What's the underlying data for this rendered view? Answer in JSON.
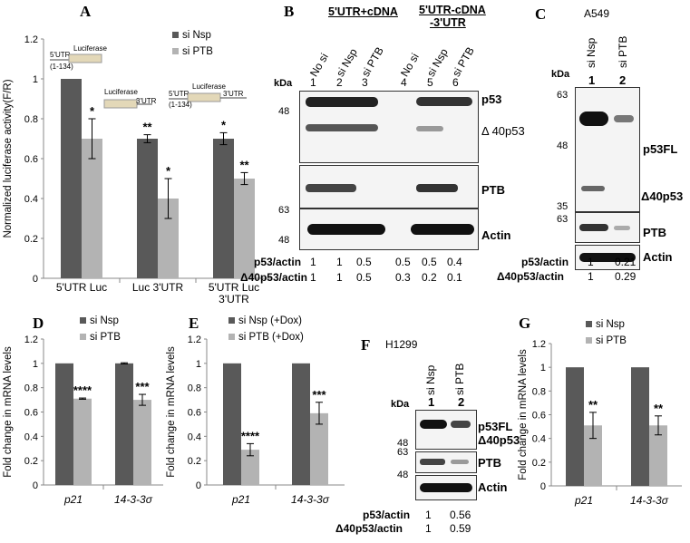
{
  "panels": {
    "A": "A",
    "B": "B",
    "C": "C",
    "D": "D",
    "E": "E",
    "F": "F",
    "G": "G"
  },
  "colors": {
    "nsp": "#595959",
    "ptb": "#b3b3b3",
    "construct": "#e3d8b8"
  },
  "chart_data": [
    {
      "panel": "A",
      "type": "bar",
      "ylabel": "Normalized luciferase activity(F/R)",
      "ylim": [
        0,
        1.2
      ],
      "yticks": [
        "0",
        "0.2",
        "0.4",
        "0.6",
        "0.8",
        "1",
        "1.2"
      ],
      "categories": [
        "5'UTR Luc",
        "Luc 3'UTR",
        "5'UTR Luc 3'UTR"
      ],
      "category_lines": [
        [
          "5'UTR Luc"
        ],
        [
          "Luc 3'UTR"
        ],
        [
          "5'UTR Luc",
          "3'UTR"
        ]
      ],
      "legend": [
        "si Nsp",
        "si PTB"
      ],
      "series": [
        {
          "name": "si Nsp",
          "values": [
            1.0,
            0.7,
            0.7
          ],
          "err": [
            0,
            0.02,
            0.03
          ],
          "sig": [
            "",
            "**",
            "*"
          ]
        },
        {
          "name": "si PTB",
          "values": [
            0.7,
            0.4,
            0.5
          ],
          "err": [
            0.1,
            0.1,
            0.03
          ],
          "sig": [
            "*",
            "*",
            "**"
          ]
        }
      ],
      "constructs": {
        "c1": [
          "5'UTR",
          "Luciferase",
          "(1-134)"
        ],
        "c2": [
          "Luciferase",
          "3'UTR"
        ],
        "c3": [
          "5'UTR",
          "Luciferase",
          "3'UTR",
          "(1-134)"
        ]
      }
    },
    {
      "panel": "D",
      "type": "bar",
      "ylabel": "Fold change in mRNA levels",
      "ylim": [
        0,
        1.2
      ],
      "yticks": [
        "0",
        "0.2",
        "0.4",
        "0.6",
        "0.8",
        "1",
        "1.2"
      ],
      "categories": [
        "p21",
        "14-3-3σ"
      ],
      "legend": [
        "si Nsp",
        "si PTB"
      ],
      "series": [
        {
          "name": "si Nsp",
          "values": [
            1.0,
            1.0
          ],
          "err": [
            0,
            0.005
          ],
          "sig": [
            "",
            ""
          ]
        },
        {
          "name": "si PTB",
          "values": [
            0.71,
            0.7
          ],
          "err": [
            0.005,
            0.045
          ],
          "sig": [
            "****",
            "***"
          ]
        }
      ]
    },
    {
      "panel": "E",
      "type": "bar",
      "ylabel": "Fold change in mRNA levels",
      "ylim": [
        0,
        1.2
      ],
      "yticks": [
        "0",
        "0.2",
        "0.4",
        "0.6",
        "0.8",
        "1",
        "1.2"
      ],
      "categories": [
        "p21",
        "14-3-3σ"
      ],
      "legend": [
        "si Nsp (+Dox)",
        "si PTB (+Dox)"
      ],
      "series": [
        {
          "name": "si Nsp (+Dox)",
          "values": [
            1.0,
            1.0
          ],
          "err": [
            0,
            0
          ],
          "sig": [
            "",
            ""
          ]
        },
        {
          "name": "si PTB (+Dox)",
          "values": [
            0.29,
            0.59
          ],
          "err": [
            0.05,
            0.09
          ],
          "sig": [
            "****",
            "***"
          ]
        }
      ]
    },
    {
      "panel": "G",
      "type": "bar",
      "ylabel": "Fold change in mRNA levels",
      "ylim": [
        0,
        1.2
      ],
      "yticks": [
        "0",
        "0.2",
        "0.4",
        "0.6",
        "0.8",
        "1",
        "1.2"
      ],
      "categories": [
        "p21",
        "14-3-3σ"
      ],
      "legend": [
        "si Nsp",
        "si PTB"
      ],
      "series": [
        {
          "name": "si Nsp",
          "values": [
            1.0,
            1.0
          ],
          "err": [
            0,
            0
          ],
          "sig": [
            "",
            ""
          ]
        },
        {
          "name": "si PTB",
          "values": [
            0.51,
            0.51
          ],
          "err": [
            0.11,
            0.08
          ],
          "sig": [
            "**",
            "**"
          ]
        }
      ]
    }
  ],
  "blotB": {
    "group1": "5'UTR+cDNA",
    "group2_l1": "5'UTR-cDNA",
    "group2_l2": "-3'UTR",
    "lanes": [
      "No si",
      "si Nsp",
      "si PTB",
      "No si",
      "si Nsp",
      "si PTB"
    ],
    "nums": [
      "1",
      "2",
      "3",
      "4",
      "5",
      "6"
    ],
    "kda": "kDa",
    "m48": "48",
    "m63": "63",
    "m48b": "48",
    "bands": {
      "p53": "p53",
      "d40": "Δ 40p53",
      "ptb": "PTB",
      "actin": "Actin"
    },
    "q1_label": "p53/actin",
    "q1": [
      "1",
      "1",
      "0.5",
      "0.5",
      "0.5",
      "0.4"
    ],
    "q2_label": "Δ40p53/actin",
    "q2": [
      "1",
      "1",
      "0.5",
      "0.3",
      "0.2",
      "0.1"
    ]
  },
  "blotC": {
    "cell": "A549",
    "kda": "kDa",
    "lanes": [
      "si Nsp",
      "si PTB"
    ],
    "nums": [
      "1",
      "2"
    ],
    "m63": "63",
    "m48": "48",
    "m35": "35",
    "m63b": "63",
    "bands": {
      "p53fl": "p53FL",
      "d40": "Δ40p53",
      "ptb": "PTB",
      "actin": "Actin"
    },
    "q1_label": "p53/actin",
    "q1": [
      "1",
      "0.21"
    ],
    "q2_label": "Δ40p53/actin",
    "q2": [
      "1",
      "0.29"
    ]
  },
  "blotF": {
    "cell": "H1299",
    "kda": "kDa",
    "lanes": [
      "si Nsp",
      "si PTB"
    ],
    "nums": [
      "1",
      "2"
    ],
    "m48": "48",
    "m63": "63",
    "m48b": "48",
    "bands": {
      "p53fl": "p53FL",
      "d40": "Δ40p53",
      "ptb": "PTB",
      "actin": "Actin"
    },
    "q1_label": "p53/actin",
    "q1": [
      "1",
      "0.56"
    ],
    "q2_label": "Δ40p53/actin",
    "q2": [
      "1",
      "0.59"
    ]
  }
}
